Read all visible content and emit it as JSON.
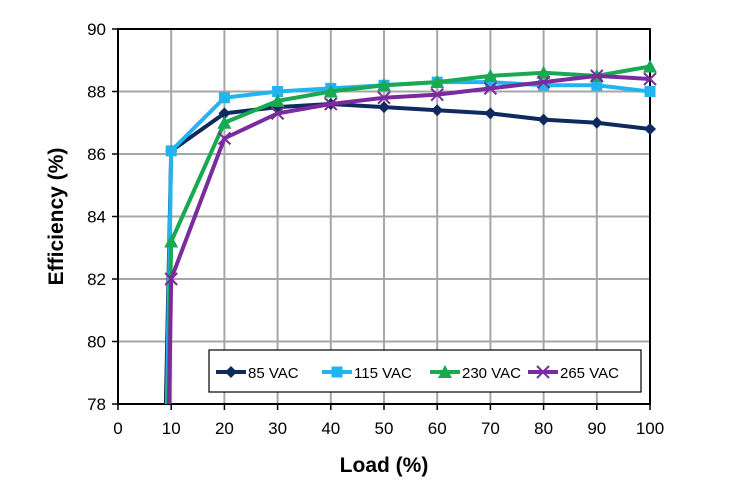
{
  "chart_data": {
    "type": "line",
    "xlabel": "Load (%)",
    "ylabel": "Efficiency (%)",
    "xlim": [
      0,
      100
    ],
    "ylim": [
      78,
      90
    ],
    "xticks": [
      0,
      10,
      20,
      30,
      40,
      50,
      60,
      70,
      80,
      90,
      100
    ],
    "yticks": [
      78,
      80,
      82,
      84,
      86,
      88,
      90
    ],
    "grid": true,
    "legend_position": "bottom-right",
    "series": [
      {
        "name": "85 VAC",
        "color": "#0f2a5e",
        "marker": "diamond",
        "x": [
          9,
          10,
          20,
          30,
          40,
          50,
          60,
          70,
          80,
          90,
          100
        ],
        "y": [
          78,
          86.1,
          87.3,
          87.5,
          87.6,
          87.5,
          87.4,
          87.3,
          87.1,
          87.0,
          86.8
        ]
      },
      {
        "name": "115 VAC",
        "color": "#22b4ee",
        "marker": "square",
        "x": [
          9.2,
          10,
          20,
          30,
          40,
          50,
          60,
          70,
          80,
          90,
          100
        ],
        "y": [
          78,
          86.1,
          87.8,
          88.0,
          88.1,
          88.2,
          88.3,
          88.3,
          88.2,
          88.2,
          88.0
        ]
      },
      {
        "name": "230 VAC",
        "color": "#19a952",
        "marker": "triangle",
        "x": [
          9.4,
          10,
          20,
          30,
          40,
          50,
          60,
          70,
          80,
          90,
          100
        ],
        "y": [
          78,
          83.2,
          87.0,
          87.7,
          88.0,
          88.2,
          88.3,
          88.5,
          88.6,
          88.5,
          88.8
        ]
      },
      {
        "name": "265 VAC",
        "color": "#7a2c9e",
        "marker": "x",
        "x": [
          9.6,
          10,
          20,
          30,
          40,
          50,
          60,
          70,
          80,
          90,
          100
        ],
        "y": [
          78,
          82.0,
          86.5,
          87.3,
          87.6,
          87.8,
          87.9,
          88.1,
          88.3,
          88.5,
          88.4
        ]
      }
    ]
  }
}
